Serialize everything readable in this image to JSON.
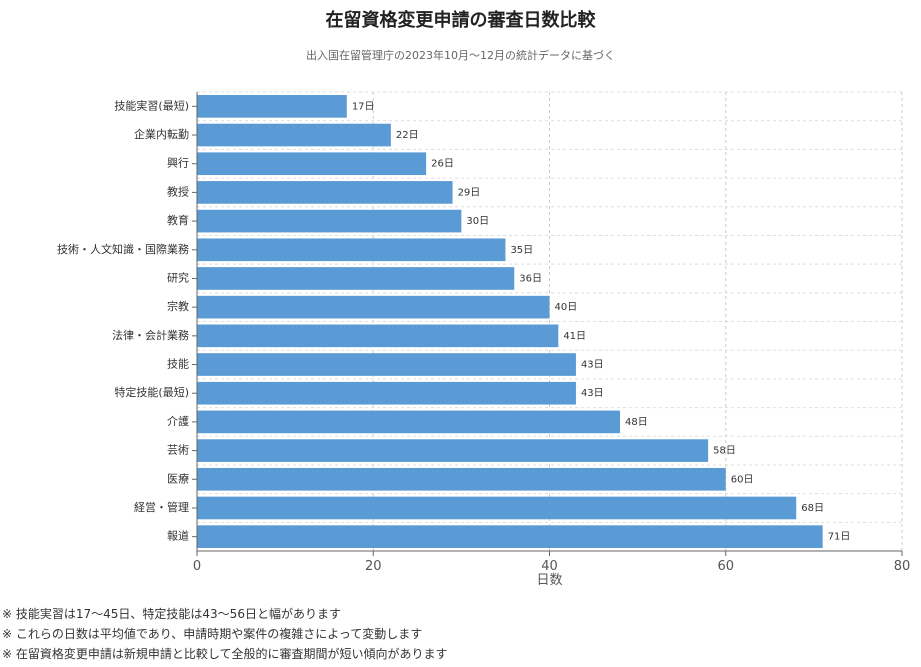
{
  "chart_data": {
    "type": "bar",
    "orientation": "horizontal",
    "title": "在留資格変更申請の審査日数比較",
    "subtitle": "出入国在留管理庁の2023年10月～12月の統計データに基づく",
    "xlabel": "日数",
    "ylabel": "",
    "xlim": [
      0,
      80
    ],
    "xticks": [
      0,
      20,
      40,
      60,
      80
    ],
    "grid": true,
    "value_suffix": "日",
    "bar_color": "#5b9bd5",
    "categories": [
      "技能実習(最短)",
      "企業内転勤",
      "興行",
      "教授",
      "教育",
      "技術・人文知識・国際業務",
      "研究",
      "宗教",
      "法律・会計業務",
      "技能",
      "特定技能(最短)",
      "介護",
      "芸術",
      "医療",
      "経営・管理",
      "報道"
    ],
    "values": [
      17,
      22,
      26,
      29,
      30,
      35,
      36,
      40,
      41,
      43,
      43,
      48,
      58,
      60,
      68,
      71
    ]
  },
  "notes": [
    "※ 技能実習は17～45日、特定技能は43～56日と幅があります",
    "※ これらの日数は平均値であり、申請時期や案件の複雑さによって変動します",
    "※ 在留資格変更申請は新規申請と比較して全般的に審査期間が短い傾向があります"
  ]
}
